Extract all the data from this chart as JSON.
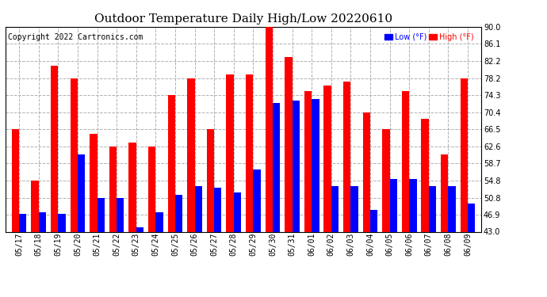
{
  "title": "Outdoor Temperature Daily High/Low 20220610",
  "copyright": "Copyright 2022 Cartronics.com",
  "legend_low_label": "Low (°F)",
  "legend_high_label": "High (°F)",
  "dates": [
    "05/17",
    "05/18",
    "05/19",
    "05/20",
    "05/21",
    "05/22",
    "05/23",
    "05/24",
    "05/25",
    "05/26",
    "05/27",
    "05/28",
    "05/29",
    "05/30",
    "05/31",
    "06/01",
    "06/02",
    "06/03",
    "06/04",
    "06/05",
    "06/06",
    "06/07",
    "06/08",
    "06/09"
  ],
  "highs": [
    66.5,
    54.8,
    81.0,
    78.2,
    65.5,
    62.6,
    63.5,
    62.6,
    74.3,
    78.2,
    66.5,
    79.0,
    79.0,
    90.0,
    83.0,
    75.2,
    76.5,
    77.5,
    70.4,
    66.5,
    75.2,
    68.9,
    60.8,
    78.2
  ],
  "lows": [
    47.0,
    47.5,
    47.0,
    60.8,
    50.8,
    50.8,
    44.0,
    47.5,
    51.5,
    53.5,
    53.0,
    52.0,
    57.2,
    72.5,
    73.0,
    73.5,
    53.5,
    53.5,
    48.0,
    55.0,
    55.0,
    53.5,
    53.5,
    49.5
  ],
  "ylim_min": 43.0,
  "ylim_max": 90.0,
  "yticks": [
    43.0,
    46.9,
    50.8,
    54.8,
    58.7,
    62.6,
    66.5,
    70.4,
    74.3,
    78.2,
    82.2,
    86.1,
    90.0
  ],
  "high_color": "#ff0000",
  "low_color": "#0000ff",
  "bg_color": "#ffffff",
  "plot_bg_color": "#ffffff",
  "grid_color": "#b0b0b0",
  "title_fontsize": 11,
  "copyright_fontsize": 7,
  "tick_fontsize": 7,
  "bar_width": 0.38
}
